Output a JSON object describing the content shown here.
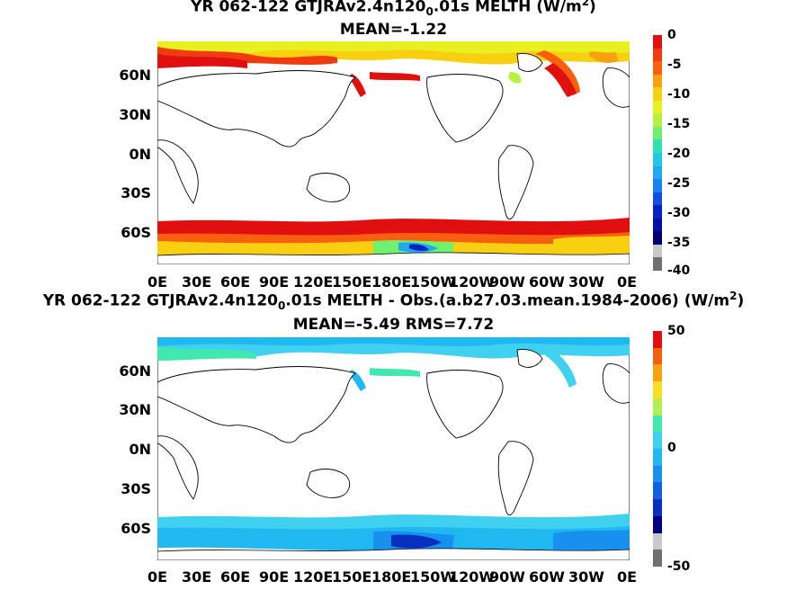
{
  "panels": [
    {
      "title": "YR 062-122 GTJRAv2.4n120",
      "title_sub": "0",
      "title_tail": ".01s  MELTH (W/m",
      "title_sup": "2",
      "title_end": ")",
      "stats": "MEAN=-1.22",
      "lat_labels": [
        "60N",
        "30N",
        "0N",
        "30S",
        "60S"
      ],
      "lon_labels": [
        "0E",
        "30E",
        "60E",
        "90E",
        "120E",
        "150E",
        "180E",
        "150W",
        "120W",
        "90W",
        "60W",
        "30W",
        "0E"
      ],
      "colorbar_labels": [
        "0",
        "-5",
        "-10",
        "-15",
        "-20",
        "-25",
        "-30",
        "-35",
        "-40"
      ]
    },
    {
      "title": "YR 062-122 GTJRAv2.4n120",
      "title_sub": "0",
      "title_tail": ".01s MELTH - Obs.(a.b27.03.mean.1984-2006) (W/m",
      "title_sup": "2",
      "title_end": ")",
      "stats": "MEAN=-5.49 RMS=7.72",
      "lat_labels": [
        "60N",
        "30N",
        "0N",
        "30S",
        "60S"
      ],
      "lon_labels": [
        "0E",
        "30E",
        "60E",
        "90E",
        "120E",
        "150E",
        "180E",
        "150W",
        "120W",
        "90W",
        "60W",
        "30W",
        "0E"
      ],
      "colorbar_labels": [
        "50",
        "0",
        "-50"
      ]
    }
  ],
  "colors": {
    "scale1": [
      "#e01010",
      "#f03a10",
      "#f86010",
      "#f8a010",
      "#f8d010",
      "#e8f020",
      "#b8f040",
      "#70f070",
      "#30e0b0",
      "#20c8e8",
      "#20a8f0",
      "#1880f0",
      "#1050e0",
      "#0820c8",
      "#0010a0",
      "#000070"
    ],
    "scale2": [
      "#e01010",
      "#f06010",
      "#f8a010",
      "#f8e020",
      "#b0f050",
      "#40e8b0",
      "#40d0f0",
      "#20b8f0",
      "#1890f0",
      "#1060e0",
      "#0830c0",
      "#000080"
    ]
  }
}
